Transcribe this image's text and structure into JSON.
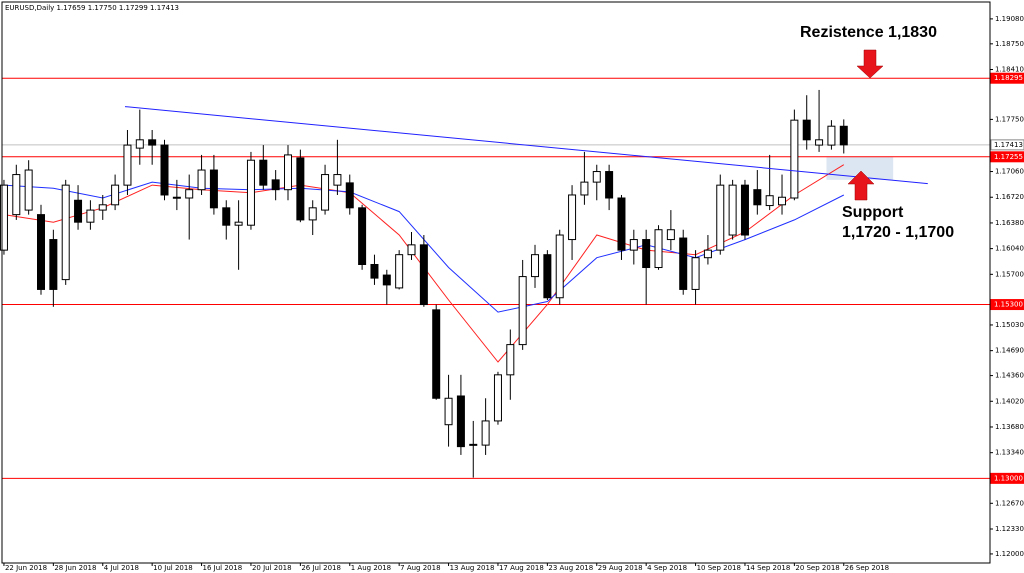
{
  "chart_data": {
    "type": "candlestick",
    "title": "EURUSD,Daily 1.17659 1.17750 1.17299 1.17413",
    "categories": [
      "22 Jun 2018",
      null,
      null,
      null,
      "28 Jun 2018",
      null,
      null,
      null,
      "4 Jul 2018",
      null,
      null,
      null,
      "10 Jul 2018",
      null,
      null,
      null,
      "16 Jul 2018",
      null,
      null,
      null,
      "20 Jul 2018",
      null,
      null,
      null,
      "26 Jul 2018",
      null,
      null,
      null,
      "1 Aug 2018",
      null,
      null,
      null,
      "7 Aug 2018",
      null,
      null,
      null,
      "13 Aug 2018",
      null,
      null,
      null,
      "17 Aug 2018",
      null,
      null,
      null,
      "23 Aug 2018",
      null,
      null,
      null,
      "29 Aug 2018",
      null,
      null,
      null,
      "4 Sep 2018",
      null,
      null,
      null,
      "10 Sep 2018",
      null,
      null,
      null,
      "14 Sep 2018",
      null,
      null,
      null,
      "20 Sep 2018",
      null,
      null,
      null,
      "26 Sep 2018"
    ],
    "open": [
      1.1602,
      1.1649,
      1.1655,
      1.1649,
      1.1616,
      1.1563,
      1.1668,
      1.1639,
      1.1655,
      1.1662,
      1.1688,
      1.1737,
      1.1748,
      1.1741,
      1.1671,
      1.1671,
      1.1682,
      1.1708,
      1.1658,
      1.1635,
      1.1635,
      1.1721,
      1.1695,
      1.1682,
      1.1724,
      1.1642,
      1.1655,
      1.1688,
      1.1691,
      1.1658,
      1.1583,
      1.1569,
      1.1552,
      1.1596,
      1.1609,
      1.1523,
      1.1371,
      1.1409,
      1.1344,
      1.1344,
      1.1376,
      1.1437,
      1.1477,
      1.1567,
      1.1596,
      1.1539,
      1.1616,
      1.1675,
      1.1692,
      1.1706,
      1.1671,
      1.1602,
      1.1616,
      1.1579,
      1.1616,
      1.1618,
      1.155,
      1.1592,
      1.1602,
      1.1622,
      1.1688,
      1.1682,
      1.1661,
      1.1662,
      1.1671,
      1.1774,
      1.1741,
      1.1741,
      1.17659
    ],
    "high": [
      1.1695,
      1.1715,
      1.1721,
      1.1662,
      1.1629,
      1.1695,
      1.1688,
      1.1668,
      1.1675,
      1.1702,
      1.1761,
      1.1788,
      1.1761,
      1.1748,
      1.1695,
      1.1702,
      1.1728,
      1.1728,
      1.1668,
      1.1668,
      1.1732,
      1.1741,
      1.1708,
      1.1741,
      1.1735,
      1.1668,
      1.1715,
      1.1748,
      1.1702,
      1.1662,
      1.1596,
      1.1576,
      1.1602,
      1.1626,
      1.1622,
      1.153,
      1.1437,
      1.1437,
      1.1376,
      1.1406,
      1.1441,
      1.1497,
      1.1589,
      1.1609,
      1.1602,
      1.1629,
      1.1688,
      1.1732,
      1.1715,
      1.1715,
      1.1675,
      1.1629,
      1.1629,
      1.1635,
      1.1655,
      1.1629,
      1.1602,
      1.1622,
      1.1702,
      1.1695,
      1.1695,
      1.1708,
      1.1728,
      1.1702,
      1.1788,
      1.1807,
      1.1814,
      1.1774,
      1.1775
    ],
    "low": [
      1.1596,
      1.1642,
      1.1649,
      1.1543,
      1.1527,
      1.1556,
      1.1629,
      1.1629,
      1.1642,
      1.1655,
      1.1675,
      1.1715,
      1.1715,
      1.1668,
      1.1655,
      1.1616,
      1.1675,
      1.1649,
      1.1616,
      1.1576,
      1.1629,
      1.1682,
      1.1668,
      1.1668,
      1.1639,
      1.1622,
      1.1649,
      1.1675,
      1.1649,
      1.1576,
      1.1556,
      1.153,
      1.155,
      1.1589,
      1.1527,
      1.1404,
      1.1342,
      1.1331,
      1.1301,
      1.1331,
      1.1371,
      1.1404,
      1.147,
      1.1552,
      1.1536,
      1.153,
      1.1589,
      1.1662,
      1.1668,
      1.1655,
      1.1589,
      1.1583,
      1.153,
      1.1576,
      1.1602,
      1.1543,
      1.153,
      1.1583,
      1.1596,
      1.1616,
      1.1616,
      1.1649,
      1.1655,
      1.1649,
      1.1668,
      1.1735,
      1.1732,
      1.1735,
      1.17299
    ],
    "close": [
      1.1688,
      1.1702,
      1.1708,
      1.155,
      1.155,
      1.1688,
      1.1639,
      1.1655,
      1.1662,
      1.1688,
      1.1741,
      1.1748,
      1.1741,
      1.1675,
      1.1672,
      1.1682,
      1.1708,
      1.1658,
      1.1635,
      1.1639,
      1.1721,
      1.1688,
      1.1682,
      1.1728,
      1.1642,
      1.1658,
      1.1702,
      1.1702,
      1.1658,
      1.1583,
      1.1565,
      1.1556,
      1.1596,
      1.1609,
      1.153,
      1.1406,
      1.1406,
      1.1342,
      1.1345,
      1.1376,
      1.1437,
      1.1477,
      1.1567,
      1.1596,
      1.1539,
      1.1622,
      1.1675,
      1.1692,
      1.1706,
      1.1671,
      1.1602,
      1.1616,
      1.1579,
      1.1629,
      1.1629,
      1.155,
      1.1592,
      1.1602,
      1.1688,
      1.1688,
      1.1622,
      1.1662,
      1.1674,
      1.1672,
      1.1774,
      1.1748,
      1.1748,
      1.1766,
      1.17413
    ],
    "moving_averages": [
      {
        "color": "#ff2020",
        "x": [
          0,
          4,
          8,
          12,
          16,
          20,
          24,
          28,
          32,
          36,
          40,
          44,
          48,
          52,
          56,
          60,
          64,
          68
        ],
        "values": [
          1.1649,
          1.1639,
          1.1658,
          1.1688,
          1.1682,
          1.1678,
          1.1688,
          1.1678,
          1.1622,
          1.1536,
          1.1454,
          1.153,
          1.1622,
          1.1602,
          1.1596,
          1.1626,
          1.1675,
          1.1715
        ]
      },
      {
        "color": "#2030ff",
        "x": [
          0,
          4,
          8,
          12,
          16,
          20,
          24,
          28,
          32,
          36,
          40,
          44,
          48,
          52,
          56,
          60,
          64,
          68
        ],
        "values": [
          1.1688,
          1.1684,
          1.1671,
          1.1692,
          1.1684,
          1.1682,
          1.1684,
          1.1679,
          1.1653,
          1.1579,
          1.152,
          1.1534,
          1.1592,
          1.1609,
          1.1592,
          1.1616,
          1.1642,
          1.1675
        ]
      }
    ],
    "trendline": {
      "color": "#2020ff",
      "x": [
        9.8,
        74.8
      ],
      "values": [
        1.1792,
        1.169
      ]
    },
    "zone": {
      "color": "#dce6f2",
      "x": [
        66.6,
        72
      ],
      "values": [
        1.17255,
        1.1695
      ]
    },
    "price_lines": [
      {
        "value": 1.18295,
        "color": "#ff0000"
      },
      {
        "value": 1.17413,
        "color": "#c0c0c0"
      },
      {
        "value": 1.17255,
        "color": "#ff0000"
      },
      {
        "value": 1.153,
        "label": "1.15300",
        "color": "#ff0000"
      },
      {
        "value": 1.13,
        "label": "1.13000",
        "color": "#ff0000"
      }
    ],
    "xlim": [
      -0.32,
      79.84
    ],
    "ylim": [
      1.1188,
      1.1933
    ],
    "yticks": [
      {
        "value": 1.1908,
        "label": "1.19080"
      },
      {
        "value": 1.1875,
        "label": "1.18750"
      },
      {
        "value": 1.1841,
        "label": "1.18410"
      },
      {
        "value": 1.1775,
        "label": "1.17750"
      },
      {
        "value": 1.1706,
        "label": "1.17060"
      },
      {
        "value": 1.1672,
        "label": "1.16720"
      },
      {
        "value": 1.1638,
        "label": "1.16380"
      },
      {
        "value": 1.1604,
        "label": "1.16040"
      },
      {
        "value": 1.157,
        "label": "1.15700"
      },
      {
        "value": 1.1503,
        "label": "1.15030"
      },
      {
        "value": 1.1469,
        "label": "1.14690"
      },
      {
        "value": 1.1436,
        "label": "1.14360"
      },
      {
        "value": 1.1402,
        "label": "1.14020"
      },
      {
        "value": 1.1368,
        "label": "1.13680"
      },
      {
        "value": 1.1334,
        "label": "1.13340"
      },
      {
        "value": 1.1267,
        "label": "1.12670"
      },
      {
        "value": 1.1233,
        "label": "1.12330"
      },
      {
        "value": 1.12,
        "label": "1.12000"
      }
    ],
    "annotations": [
      "Rezistence 1,1830",
      "Support",
      "1,1720 - 1,1700"
    ]
  }
}
